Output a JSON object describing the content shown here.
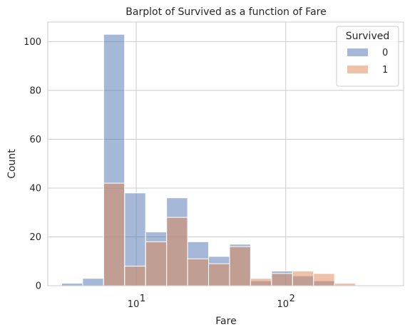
{
  "chart_data": {
    "type": "histogram",
    "title": "Barplot of Survived as a function of Fare",
    "xlabel": "Fare",
    "ylabel": "Count",
    "x_scale": "log",
    "xlim": [
      2.56,
      614
    ],
    "ylim": [
      0,
      108
    ],
    "y_ticks": [
      0,
      20,
      40,
      60,
      80,
      100
    ],
    "x_ticks": [
      10,
      100
    ],
    "x_tick_labels": [
      {
        "base": "10",
        "exp": "1"
      },
      {
        "base": "10",
        "exp": "2"
      }
    ],
    "grid": true,
    "legend_title": "Survived",
    "legend_position": "top-right",
    "bin_edges": [
      3.17,
      4.38,
      6.05,
      8.36,
      11.55,
      15.96,
      22.05,
      30.47,
      42.1,
      58.17,
      80.38,
      111.06,
      153.46,
      212.04,
      292.98,
      404.83,
      559.37
    ],
    "series": [
      {
        "name": "0",
        "color": "#4c72b0",
        "counts": [
          1,
          3,
          103,
          38,
          22,
          36,
          18,
          12,
          17,
          2,
          6,
          4,
          2,
          0,
          0,
          0
        ]
      },
      {
        "name": "1",
        "color": "#dd8452",
        "counts": [
          0,
          0,
          42,
          8,
          18,
          28,
          11,
          9,
          16,
          3,
          5,
          6,
          5,
          1,
          0,
          0
        ]
      }
    ]
  }
}
